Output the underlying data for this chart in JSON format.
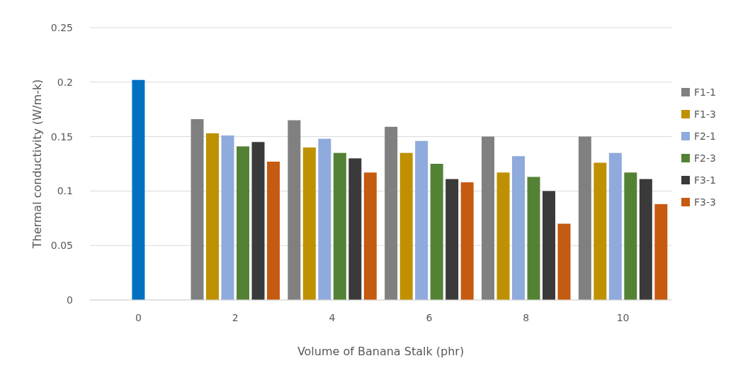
{
  "chart_data": {
    "type": "bar",
    "xlabel": "Volume of Banana Stalk (phr)",
    "ylabel": "Thermal conductivity (W/m-k)",
    "categories": [
      "0",
      "2",
      "4",
      "6",
      "8",
      "10"
    ],
    "series": [
      {
        "color": "#0070c0",
        "values": [
          0.202,
          null,
          null,
          null,
          null,
          null
        ]
      },
      {
        "name": "F1-1",
        "color": "#808080",
        "values": [
          null,
          0.166,
          0.165,
          0.159,
          0.15,
          0.15
        ]
      },
      {
        "name": "F1-3",
        "color": "#bf9000",
        "values": [
          null,
          0.153,
          0.14,
          0.135,
          0.117,
          0.126
        ]
      },
      {
        "name": "F2-1",
        "color": "#8faadc",
        "values": [
          null,
          0.151,
          0.148,
          0.146,
          0.132,
          0.135
        ]
      },
      {
        "name": "F2-3",
        "color": "#548235",
        "values": [
          null,
          0.141,
          0.135,
          0.125,
          0.113,
          0.117
        ]
      },
      {
        "name": "F3-1",
        "color": "#3a3a3a",
        "values": [
          null,
          0.145,
          0.13,
          0.111,
          0.1,
          0.111
        ]
      },
      {
        "name": "F3-3",
        "color": "#c55a11",
        "values": [
          null,
          0.127,
          0.117,
          0.108,
          0.07,
          0.088
        ]
      }
    ],
    "ylim": [
      0,
      0.25
    ],
    "yticks": [
      0,
      0.05,
      0.1,
      0.15,
      0.2,
      0.25
    ],
    "grid": "y",
    "legend": "right"
  }
}
